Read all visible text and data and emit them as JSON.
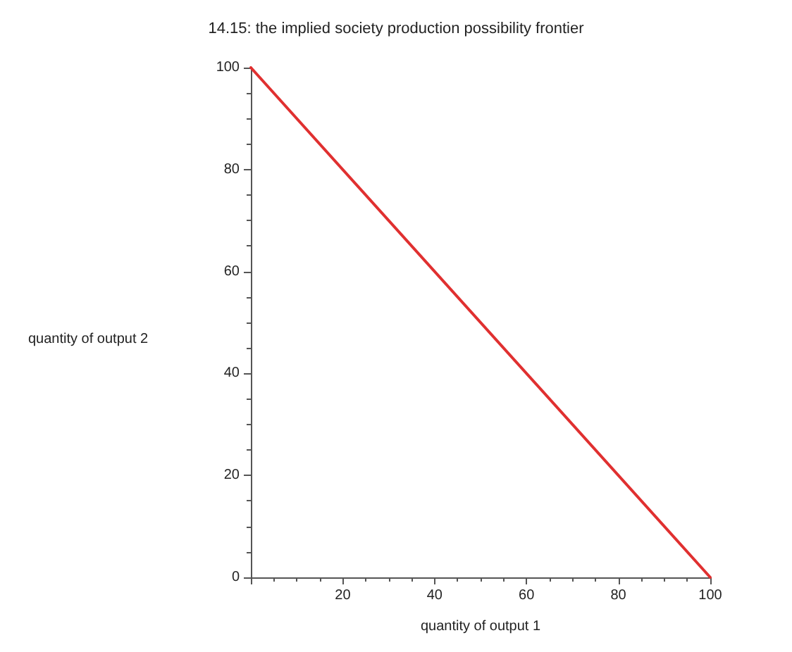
{
  "chart_data": {
    "type": "line",
    "title": "14.15: the implied society production possibility frontier",
    "xlabel": "quantity of output 1",
    "ylabel": "quantity of output 2",
    "x": [
      0,
      100
    ],
    "series": [
      {
        "color": "#e03030",
        "values": [
          100,
          0
        ]
      }
    ],
    "xlim": [
      0,
      100
    ],
    "ylim": [
      0,
      100
    ],
    "xticks": [
      {
        "value": 0,
        "label": null
      },
      20,
      40,
      60,
      80,
      100
    ],
    "yticks": [
      0,
      20,
      40,
      60,
      80,
      100
    ],
    "grid": false,
    "marker": "none",
    "line_style": "solid"
  }
}
